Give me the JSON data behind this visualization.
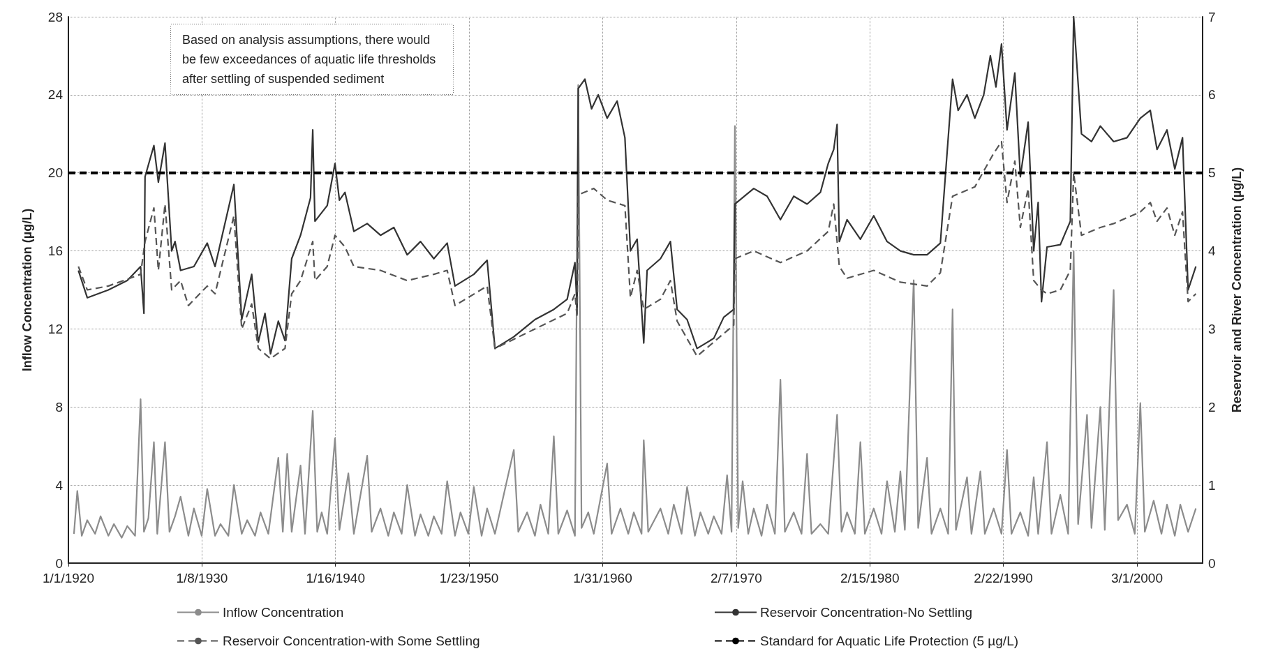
{
  "chart_data": {
    "type": "line",
    "ylabel": "Inflow Concentration (µg/L)",
    "y2label": "Reservoir and River Concentration (µg/L)",
    "annotations": [
      "Based on analysis assumptions, there would be few exceedances of aquatic life thresholds after settling of suspended sediment"
    ],
    "xlim": [
      "1920-01-01",
      "2005-02-01"
    ],
    "xticks": [
      {
        "value": "1920-01-01",
        "label": "1/1/1920"
      },
      {
        "value": "1930-01-08",
        "label": "1/8/1930"
      },
      {
        "value": "1940-01-16",
        "label": "1/16/1940"
      },
      {
        "value": "1950-01-23",
        "label": "1/23/1950"
      },
      {
        "value": "1960-01-31",
        "label": "1/31/1960"
      },
      {
        "value": "1970-02-07",
        "label": "2/7/1970"
      },
      {
        "value": "1980-02-15",
        "label": "2/15/1980"
      },
      {
        "value": "1990-02-22",
        "label": "2/22/1990"
      },
      {
        "value": "2000-03-01",
        "label": "3/1/2000"
      }
    ],
    "ylim": [
      0,
      28
    ],
    "yticks": [
      0,
      4,
      8,
      12,
      16,
      20,
      24,
      28
    ],
    "y2lim": [
      0,
      7
    ],
    "y2ticks": [
      0,
      1,
      2,
      3,
      4,
      5,
      6,
      7
    ],
    "grid": true,
    "legend": "bottom",
    "marker": "none",
    "series": [
      {
        "name": "Inflow Concentration",
        "color": "#8c8c8c",
        "line_style": "solid",
        "axis": "y",
        "x": [
          "1920-06",
          "1920-09",
          "1921-01",
          "1921-06",
          "1922-01",
          "1922-06",
          "1923-01",
          "1923-06",
          "1924-01",
          "1924-06",
          "1925-01",
          "1925-06",
          "1925-09",
          "1926-01",
          "1926-06",
          "1926-09",
          "1927-04",
          "1927-08",
          "1928-01",
          "1928-06",
          "1929-01",
          "1929-06",
          "1930-01",
          "1930-06",
          "1931-01",
          "1931-06",
          "1932-01",
          "1932-06",
          "1933-01",
          "1933-06",
          "1934-01",
          "1934-06",
          "1935-01",
          "1935-10",
          "1936-02",
          "1936-06",
          "1936-10",
          "1937-06",
          "1937-10",
          "1938-05",
          "1938-09",
          "1939-01",
          "1939-06",
          "1940-01",
          "1940-05",
          "1941-01",
          "1941-06",
          "1942-06",
          "1942-10",
          "1943-06",
          "1944-01",
          "1944-06",
          "1945-01",
          "1945-06",
          "1946-01",
          "1946-06",
          "1947-01",
          "1947-06",
          "1948-01",
          "1948-06",
          "1949-01",
          "1949-06",
          "1950-01",
          "1950-06",
          "1951-01",
          "1951-06",
          "1952-01",
          "1953-06",
          "1953-10",
          "1954-06",
          "1955-01",
          "1955-06",
          "1956-01",
          "1956-06",
          "1956-10",
          "1957-06",
          "1958-01",
          "1958-04",
          "1958-07",
          "1959-01",
          "1959-06",
          "1960-06",
          "1960-10",
          "1961-06",
          "1962-01",
          "1962-06",
          "1963-01",
          "1963-03",
          "1963-07",
          "1964-06",
          "1965-01",
          "1965-06",
          "1966-01",
          "1966-06",
          "1967-01",
          "1967-06",
          "1968-01",
          "1968-06",
          "1969-01",
          "1969-06",
          "1969-10",
          "1970-01",
          "1970-04",
          "1970-08",
          "1971-01",
          "1971-06",
          "1972-01",
          "1972-06",
          "1973-01",
          "1973-06",
          "1973-10",
          "1974-06",
          "1975-01",
          "1975-06",
          "1975-10",
          "1976-06",
          "1977-01",
          "1977-09",
          "1978-01",
          "1978-06",
          "1979-01",
          "1979-06",
          "1979-10",
          "1980-06",
          "1981-01",
          "1981-06",
          "1982-01",
          "1982-06",
          "1982-10",
          "1983-06",
          "1983-10",
          "1984-06",
          "1984-10",
          "1985-06",
          "1986-01",
          "1986-05",
          "1986-08",
          "1987-06",
          "1987-10",
          "1988-06",
          "1988-10",
          "1989-06",
          "1990-01",
          "1990-06",
          "1990-10",
          "1991-06",
          "1992-01",
          "1992-06",
          "1992-10",
          "1993-06",
          "1993-10",
          "1994-06",
          "1995-01",
          "1995-06",
          "1995-10",
          "1996-06",
          "1996-10",
          "1997-06",
          "1997-10",
          "1998-06",
          "1998-10",
          "1999-06",
          "2000-01",
          "2000-06",
          "2000-10",
          "2001-06",
          "2002-01",
          "2002-06",
          "2003-01",
          "2003-06",
          "2004-01",
          "2004-08"
        ],
        "values": [
          1.5,
          3.7,
          1.4,
          2.2,
          1.5,
          2.4,
          1.4,
          2.0,
          1.3,
          1.9,
          1.4,
          8.4,
          1.6,
          2.3,
          6.2,
          1.5,
          6.2,
          1.6,
          2.4,
          3.4,
          1.4,
          2.8,
          1.4,
          3.8,
          1.4,
          2.0,
          1.4,
          4.0,
          1.5,
          2.2,
          1.4,
          2.6,
          1.5,
          5.4,
          1.6,
          5.6,
          1.6,
          5.0,
          1.5,
          7.8,
          1.6,
          2.6,
          1.5,
          6.4,
          1.7,
          4.6,
          1.5,
          5.5,
          1.6,
          2.8,
          1.4,
          2.6,
          1.5,
          4.0,
          1.4,
          2.5,
          1.4,
          2.4,
          1.5,
          4.2,
          1.4,
          2.6,
          1.5,
          3.9,
          1.4,
          2.8,
          1.5,
          5.8,
          1.6,
          2.6,
          1.4,
          3.0,
          1.5,
          6.5,
          1.5,
          2.7,
          1.4,
          24.5,
          1.8,
          2.6,
          1.5,
          5.1,
          1.5,
          2.8,
          1.5,
          2.6,
          1.5,
          6.3,
          1.6,
          2.8,
          1.5,
          3.0,
          1.5,
          3.9,
          1.4,
          2.6,
          1.5,
          2.4,
          1.5,
          4.5,
          1.6,
          22.4,
          1.8,
          4.2,
          1.5,
          2.8,
          1.4,
          3.0,
          1.5,
          9.4,
          1.6,
          2.6,
          1.5,
          5.6,
          1.5,
          2.0,
          1.5,
          7.6,
          1.6,
          2.6,
          1.5,
          6.2,
          1.5,
          2.8,
          1.5,
          4.2,
          1.6,
          4.7,
          1.7,
          14.5,
          1.8,
          5.4,
          1.5,
          2.8,
          1.5,
          13.0,
          1.7,
          4.4,
          1.5,
          4.7,
          1.5,
          2.8,
          1.5,
          5.8,
          1.5,
          2.6,
          1.4,
          4.4,
          1.5,
          6.2,
          1.5,
          3.5,
          1.5,
          16.0,
          2.0,
          7.6,
          1.8,
          8.0,
          1.7,
          14.0,
          2.2,
          3.0,
          1.5,
          8.2,
          1.6,
          3.2,
          1.5,
          3.0,
          1.4,
          3.0,
          1.6,
          2.8
        ]
      },
      {
        "name": "Reservoir Concentration-No Settling",
        "color": "#333333",
        "line_style": "solid",
        "axis": "y2",
        "x": [
          "1920-10",
          "1921-06",
          "1923-01",
          "1924-06",
          "1925-06",
          "1925-09",
          "1925-10",
          "1926-06",
          "1926-10",
          "1927-04",
          "1927-10",
          "1928-01",
          "1928-06",
          "1929-06",
          "1930-06",
          "1931-01",
          "1932-06",
          "1933-01",
          "1933-10",
          "1934-04",
          "1934-10",
          "1935-03",
          "1935-10",
          "1936-04",
          "1936-10",
          "1937-06",
          "1938-03",
          "1938-05",
          "1938-07",
          "1939-06",
          "1940-01",
          "1940-05",
          "1940-10",
          "1941-06",
          "1942-06",
          "1943-06",
          "1944-06",
          "1945-06",
          "1946-06",
          "1947-06",
          "1948-06",
          "1949-01",
          "1950-06",
          "1951-06",
          "1952-01",
          "1953-06",
          "1955-01",
          "1956-06",
          "1957-06",
          "1958-01",
          "1958-03",
          "1958-04",
          "1958-10",
          "1959-04",
          "1959-10",
          "1960-06",
          "1961-03",
          "1961-10",
          "1962-03",
          "1962-09",
          "1963-03",
          "1963-06",
          "1964-06",
          "1965-03",
          "1965-09",
          "1966-06",
          "1967-03",
          "1968-06",
          "1969-03",
          "1969-12",
          "1970-01",
          "1971-06",
          "1972-06",
          "1973-06",
          "1974-06",
          "1975-06",
          "1976-06",
          "1977-01",
          "1977-06",
          "1977-09",
          "1977-11",
          "1978-06",
          "1979-06",
          "1980-06",
          "1981-06",
          "1982-06",
          "1983-06",
          "1984-06",
          "1985-06",
          "1986-05",
          "1986-10",
          "1987-06",
          "1988-01",
          "1988-09",
          "1989-03",
          "1989-08",
          "1990-01",
          "1990-06",
          "1991-01",
          "1991-06",
          "1992-01",
          "1992-06",
          "1992-10",
          "1993-01",
          "1993-06",
          "1994-06",
          "1995-03",
          "1995-06",
          "1996-01",
          "1996-10",
          "1997-06",
          "1998-06",
          "1999-06",
          "2000-06",
          "2001-03",
          "2001-09",
          "2002-06",
          "2003-01",
          "2003-08",
          "2004-01",
          "2004-08"
        ],
        "values": [
          3.75,
          3.4,
          3.5,
          3.62,
          3.8,
          3.2,
          4.95,
          5.35,
          4.88,
          5.38,
          4.0,
          4.12,
          3.75,
          3.8,
          4.1,
          3.8,
          4.85,
          3.12,
          3.7,
          2.83,
          3.2,
          2.68,
          3.1,
          2.85,
          3.9,
          4.2,
          4.68,
          5.55,
          4.38,
          4.58,
          5.12,
          4.65,
          4.75,
          4.25,
          4.35,
          4.2,
          4.3,
          3.95,
          4.12,
          3.9,
          4.1,
          3.55,
          3.7,
          3.88,
          2.75,
          2.9,
          3.12,
          3.25,
          3.38,
          3.85,
          3.25,
          6.08,
          6.2,
          5.82,
          6.0,
          5.7,
          5.92,
          5.45,
          4.0,
          4.15,
          2.82,
          3.75,
          3.9,
          4.12,
          3.25,
          3.12,
          2.75,
          2.88,
          3.15,
          3.25,
          4.6,
          4.8,
          4.7,
          4.4,
          4.7,
          4.6,
          4.75,
          5.12,
          5.3,
          5.62,
          4.12,
          4.4,
          4.15,
          4.45,
          4.12,
          4.0,
          3.95,
          3.95,
          4.1,
          6.2,
          5.8,
          6.0,
          5.7,
          6.0,
          6.5,
          6.1,
          6.65,
          5.55,
          6.28,
          4.95,
          5.65,
          4.0,
          4.62,
          3.35,
          4.05,
          4.08,
          4.38,
          7.0,
          5.5,
          5.4,
          5.6,
          5.4,
          5.45,
          5.7,
          5.8,
          5.3,
          5.55,
          5.05,
          5.45,
          3.5,
          3.8
        ]
      },
      {
        "name": "Reservoir Concentration-with Some Settling",
        "color": "#555555",
        "line_style": "dashed",
        "axis": "y2",
        "x": [
          "1920-10",
          "1921-06",
          "1923-01",
          "1925-06",
          "1925-10",
          "1926-06",
          "1926-10",
          "1927-04",
          "1927-10",
          "1928-06",
          "1929-01",
          "1930-06",
          "1931-01",
          "1932-06",
          "1933-01",
          "1933-10",
          "1934-04",
          "1935-03",
          "1936-04",
          "1936-10",
          "1937-06",
          "1938-05",
          "1938-07",
          "1939-06",
          "1940-01",
          "1940-10",
          "1941-06",
          "1943-06",
          "1945-06",
          "1947-06",
          "1948-06",
          "1949-01",
          "1951-06",
          "1952-01",
          "1955-01",
          "1957-06",
          "1958-01",
          "1958-03",
          "1958-04",
          "1959-06",
          "1960-06",
          "1961-10",
          "1962-03",
          "1962-09",
          "1963-03",
          "1964-06",
          "1965-03",
          "1965-09",
          "1967-03",
          "1969-12",
          "1970-01",
          "1971-06",
          "1973-06",
          "1975-06",
          "1977-01",
          "1977-06",
          "1977-11",
          "1978-06",
          "1980-06",
          "1982-06",
          "1984-06",
          "1985-06",
          "1986-05",
          "1988-01",
          "1989-06",
          "1990-01",
          "1990-06",
          "1991-01",
          "1991-06",
          "1992-01",
          "1992-06",
          "1993-01",
          "1993-06",
          "1994-06",
          "1995-03",
          "1995-06",
          "1996-01",
          "1997-06",
          "1998-06",
          "2000-06",
          "2001-03",
          "2001-09",
          "2002-06",
          "2003-01",
          "2003-08",
          "2004-01",
          "2004-08"
        ],
        "values": [
          3.8,
          3.5,
          3.55,
          3.7,
          4.12,
          4.55,
          3.75,
          4.6,
          3.5,
          3.62,
          3.3,
          3.55,
          3.45,
          4.45,
          3.0,
          3.32,
          2.75,
          2.62,
          2.75,
          3.45,
          3.62,
          4.12,
          3.62,
          3.8,
          4.2,
          4.05,
          3.8,
          3.75,
          3.62,
          3.7,
          3.75,
          3.3,
          3.55,
          2.75,
          3.0,
          3.2,
          3.45,
          3.15,
          4.72,
          4.8,
          4.65,
          4.58,
          3.4,
          3.75,
          3.25,
          3.38,
          3.62,
          3.1,
          2.65,
          3.05,
          3.9,
          4.0,
          3.85,
          4.0,
          4.25,
          4.6,
          3.8,
          3.65,
          3.75,
          3.6,
          3.55,
          3.72,
          4.7,
          4.82,
          5.25,
          5.4,
          4.62,
          5.15,
          4.3,
          4.8,
          3.62,
          3.5,
          3.45,
          3.5,
          3.75,
          5.0,
          4.2,
          4.3,
          4.35,
          4.5,
          4.62,
          4.38,
          4.55,
          4.2,
          4.5,
          3.35,
          3.45
        ]
      },
      {
        "name": "Standard for Aquatic Life Protection (5 µg/L)",
        "color": "#000000",
        "line_style": "dashed",
        "axis": "y2",
        "x": [
          "1920-01-01",
          "2005-02-01"
        ],
        "values": [
          5,
          5
        ]
      }
    ]
  }
}
